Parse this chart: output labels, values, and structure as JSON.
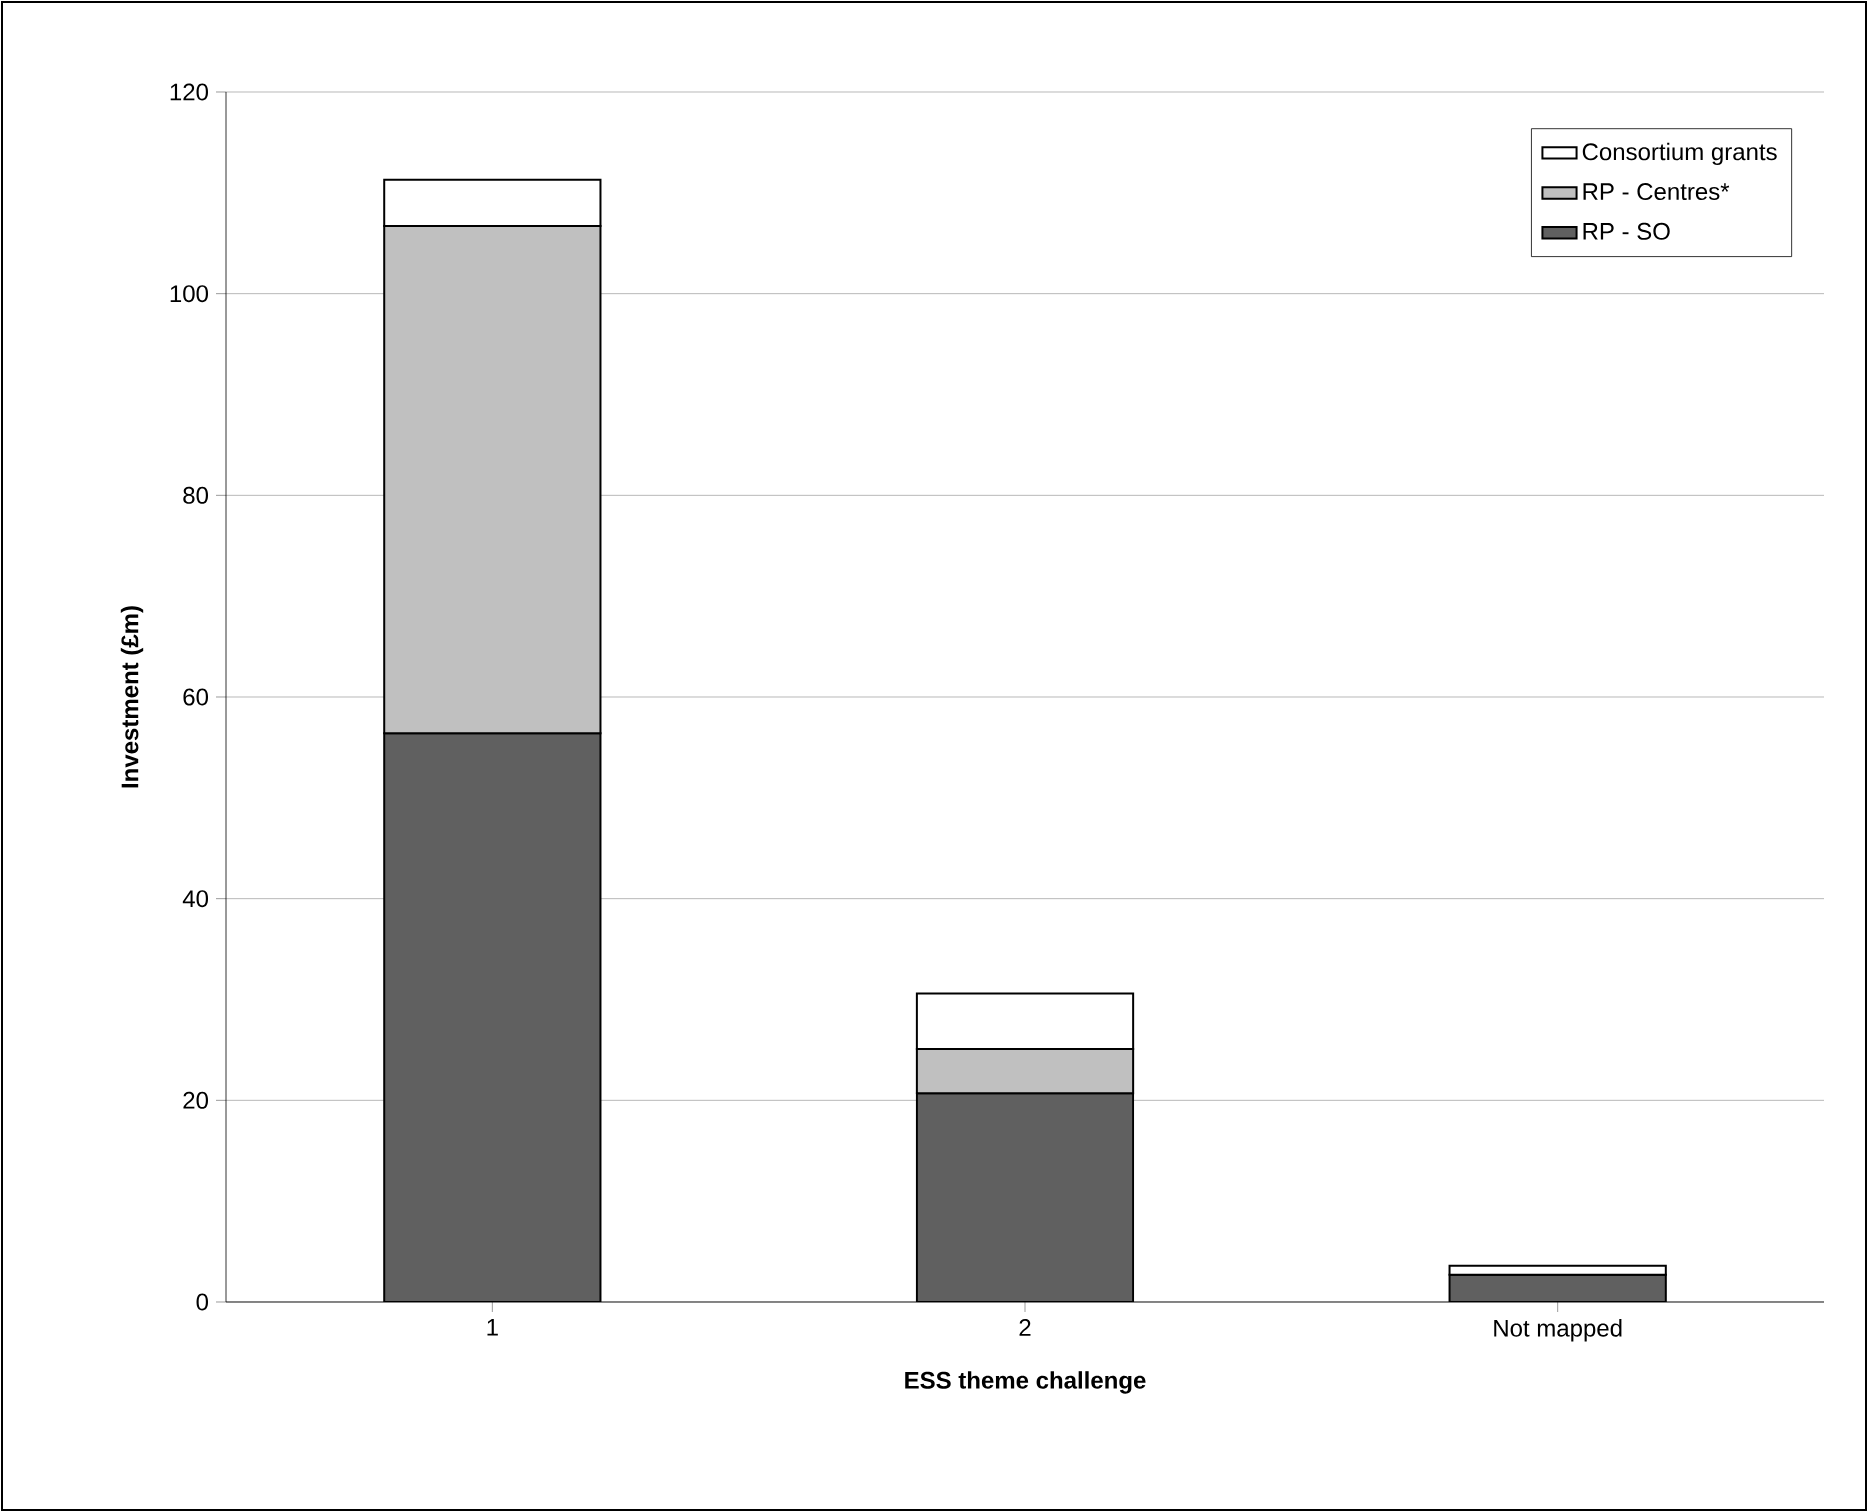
{
  "chart_data": {
    "type": "bar",
    "stacked": true,
    "xlabel": "ESS theme challenge",
    "ylabel": "Investment (£m)",
    "categories": [
      "1",
      "2",
      "Not mapped"
    ],
    "series": [
      {
        "name": "RP - SO",
        "color": "#606060",
        "values": [
          56.4,
          20.7,
          2.7
        ]
      },
      {
        "name": "RP - Centres*",
        "color": "#c0c0c0",
        "values": [
          50.3,
          4.4,
          null
        ]
      },
      {
        "name": "Consortium grants",
        "color": "#ffffff",
        "values": [
          4.6,
          5.5,
          0.9
        ]
      }
    ],
    "ylim": [
      0,
      120
    ],
    "yticks": [
      0,
      20,
      40,
      60,
      80,
      100,
      120
    ],
    "grid": "y",
    "legend": "top right"
  }
}
